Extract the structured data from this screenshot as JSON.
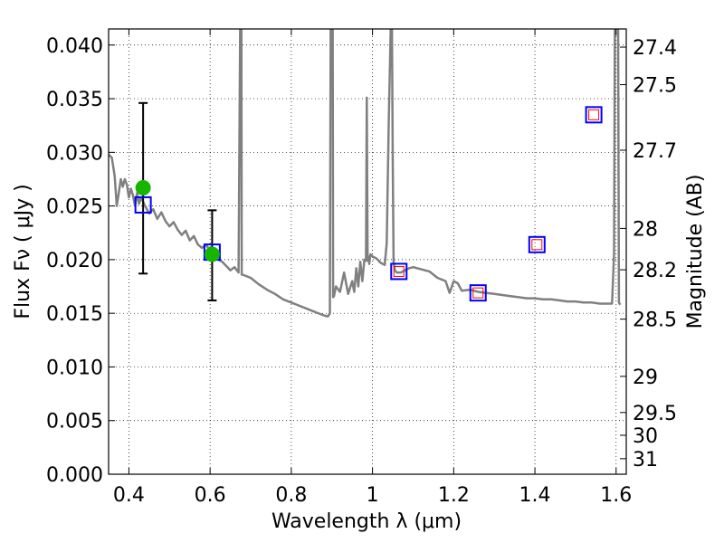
{
  "chart_data": {
    "type": "line",
    "xlabel": "Wavelength  λ (μm)",
    "ylabel": "Flux  Fν  ( μJy )",
    "ylabel2": "Magnitude (AB)",
    "xlim": [
      0.35,
      1.625
    ],
    "ylim": [
      0.0,
      0.0415
    ],
    "grid": true,
    "x_ticks": [
      {
        "value": 0.4,
        "label": "0.4"
      },
      {
        "value": 0.6,
        "label": "0.6"
      },
      {
        "value": 0.8,
        "label": "0.8"
      },
      {
        "value": 1.0,
        "label": "1"
      },
      {
        "value": 1.2,
        "label": "1.2"
      },
      {
        "value": 1.4,
        "label": "1.4"
      },
      {
        "value": 1.6,
        "label": "1.6"
      }
    ],
    "y_ticks": [
      {
        "value": 0.0,
        "label": "0.000"
      },
      {
        "value": 0.005,
        "label": "0.005"
      },
      {
        "value": 0.01,
        "label": "0.010"
      },
      {
        "value": 0.015,
        "label": "0.015"
      },
      {
        "value": 0.02,
        "label": "0.020"
      },
      {
        "value": 0.025,
        "label": "0.025"
      },
      {
        "value": 0.03,
        "label": "0.030"
      },
      {
        "value": 0.035,
        "label": "0.035"
      },
      {
        "value": 0.04,
        "label": "0.040"
      }
    ],
    "mag_ticks": [
      {
        "mag": 27.4,
        "label": "27.4"
      },
      {
        "mag": 27.5,
        "label": "27.5"
      },
      {
        "mag": 27.7,
        "label": "27.7"
      },
      {
        "mag": 28.0,
        "label": "28"
      },
      {
        "mag": 28.2,
        "label": "28.2"
      },
      {
        "mag": 28.5,
        "label": "28.5"
      },
      {
        "mag": 29.0,
        "label": "29"
      },
      {
        "mag": 29.5,
        "label": "29.5"
      },
      {
        "mag": 30.0,
        "label": "30"
      },
      {
        "mag": 31.0,
        "label": "31"
      }
    ],
    "series": [
      {
        "kind": "spectrum",
        "color": "#808080",
        "x": [
          0.35,
          0.358,
          0.365,
          0.37,
          0.375,
          0.38,
          0.385,
          0.39,
          0.395,
          0.4,
          0.405,
          0.41,
          0.415,
          0.42,
          0.425,
          0.43,
          0.44,
          0.45,
          0.46,
          0.47,
          0.48,
          0.49,
          0.5,
          0.51,
          0.52,
          0.53,
          0.54,
          0.55,
          0.56,
          0.57,
          0.58,
          0.59,
          0.6,
          0.61,
          0.62,
          0.63,
          0.64,
          0.65,
          0.66,
          0.67,
          0.674,
          0.675,
          0.676,
          0.677,
          0.678,
          0.68,
          0.7,
          0.72,
          0.74,
          0.76,
          0.78,
          0.8,
          0.82,
          0.84,
          0.86,
          0.88,
          0.89,
          0.895,
          0.897,
          0.898,
          0.899,
          0.9,
          0.901,
          0.902,
          0.903,
          0.905,
          0.91,
          0.92,
          0.93,
          0.94,
          0.95,
          0.955,
          0.96,
          0.965,
          0.97,
          0.975,
          0.98,
          0.984,
          0.986,
          0.988,
          0.99,
          0.992,
          0.995,
          1.0,
          1.01,
          1.02,
          1.03,
          1.035,
          1.04,
          1.045,
          1.048,
          1.05,
          1.052,
          1.055,
          1.06,
          1.07,
          1.08,
          1.09,
          1.1,
          1.12,
          1.14,
          1.16,
          1.18,
          1.19,
          1.2,
          1.21,
          1.22,
          1.24,
          1.26,
          1.28,
          1.3,
          1.32,
          1.34,
          1.36,
          1.38,
          1.4,
          1.42,
          1.44,
          1.46,
          1.48,
          1.5,
          1.52,
          1.54,
          1.56,
          1.58,
          1.59,
          1.595,
          1.597,
          1.6,
          1.603,
          1.605,
          1.607,
          1.61
        ],
        "y": [
          0.0298,
          0.0295,
          0.0278,
          0.025,
          0.0262,
          0.0275,
          0.0268,
          0.0275,
          0.027,
          0.0258,
          0.0266,
          0.026,
          0.025,
          0.0262,
          0.0252,
          0.0258,
          0.025,
          0.0243,
          0.0247,
          0.0238,
          0.0244,
          0.0236,
          0.0231,
          0.0235,
          0.0228,
          0.0223,
          0.0227,
          0.0218,
          0.0222,
          0.0214,
          0.0211,
          0.0214,
          0.0208,
          0.0203,
          0.02,
          0.0198,
          0.0194,
          0.019,
          0.0193,
          0.0188,
          0.042,
          0.042,
          0.042,
          0.042,
          0.0186,
          0.0186,
          0.0183,
          0.0177,
          0.0172,
          0.0168,
          0.0163,
          0.016,
          0.0157,
          0.0154,
          0.0151,
          0.0148,
          0.0147,
          0.015,
          0.042,
          0.042,
          0.042,
          0.042,
          0.042,
          0.042,
          0.0165,
          0.0166,
          0.0175,
          0.017,
          0.0188,
          0.0168,
          0.018,
          0.017,
          0.0192,
          0.0175,
          0.0198,
          0.018,
          0.02,
          0.0199,
          0.0351,
          0.0199,
          0.0203,
          0.0196,
          0.0205,
          0.0203,
          0.0201,
          0.0197,
          0.0195,
          0.0215,
          0.033,
          0.0418,
          0.0418,
          0.029,
          0.0198,
          0.019,
          0.0188,
          0.0188,
          0.019,
          0.0192,
          0.0193,
          0.0191,
          0.0189,
          0.0183,
          0.018,
          0.0169,
          0.018,
          0.0178,
          0.0171,
          0.0172,
          0.017,
          0.0169,
          0.0168,
          0.0167,
          0.0166,
          0.0165,
          0.0164,
          0.0164,
          0.0163,
          0.0163,
          0.0162,
          0.0161,
          0.0161,
          0.016,
          0.016,
          0.0159,
          0.0159,
          0.0159,
          0.0205,
          0.0415,
          0.0418,
          0.0418,
          0.0418,
          0.016,
          0.0158
        ]
      },
      {
        "kind": "observed",
        "marker": "circle",
        "color": "#16b600",
        "x": [
          0.435,
          0.605
        ],
        "y": [
          0.0267,
          0.0205
        ],
        "err_low": [
          0.0187,
          0.0162
        ],
        "err_high": [
          0.0346,
          0.0246
        ]
      },
      {
        "kind": "model-square-blue",
        "marker": "square",
        "color": "#0000ff",
        "x": [
          0.435,
          0.605,
          1.065,
          1.26,
          1.405,
          1.545
        ],
        "y": [
          0.0251,
          0.0207,
          0.0189,
          0.0169,
          0.0214,
          0.0335
        ]
      },
      {
        "kind": "model-square-red",
        "marker": "square",
        "color": "#ff0000",
        "x": [
          1.065,
          1.26,
          1.405,
          1.545
        ],
        "y": [
          0.0189,
          0.0169,
          0.0214,
          0.0335
        ]
      }
    ]
  }
}
